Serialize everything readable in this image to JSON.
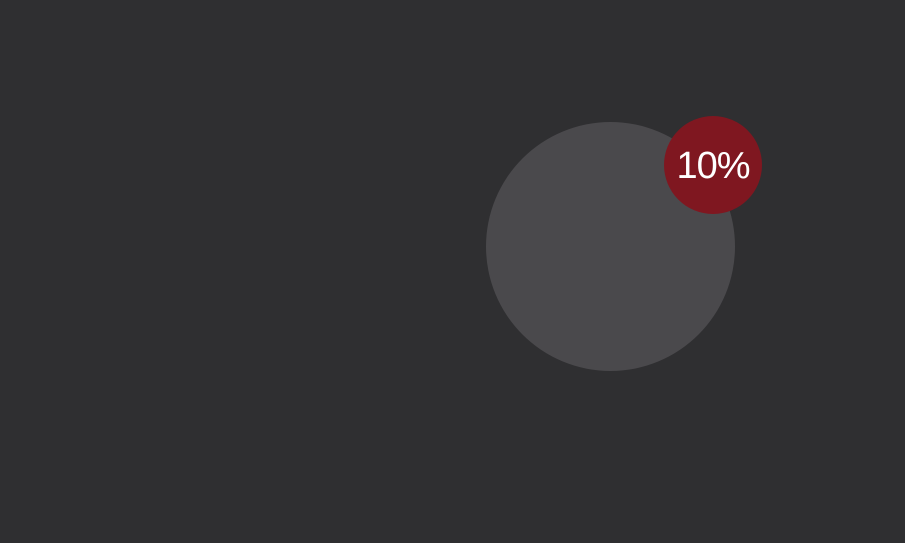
{
  "badge": {
    "value_text": "10%",
    "value_percent": 10
  },
  "colors": {
    "background": "#2f2f31",
    "circle": "#4a494c",
    "badge": "#7f1720",
    "badge_text": "#ffffff"
  }
}
